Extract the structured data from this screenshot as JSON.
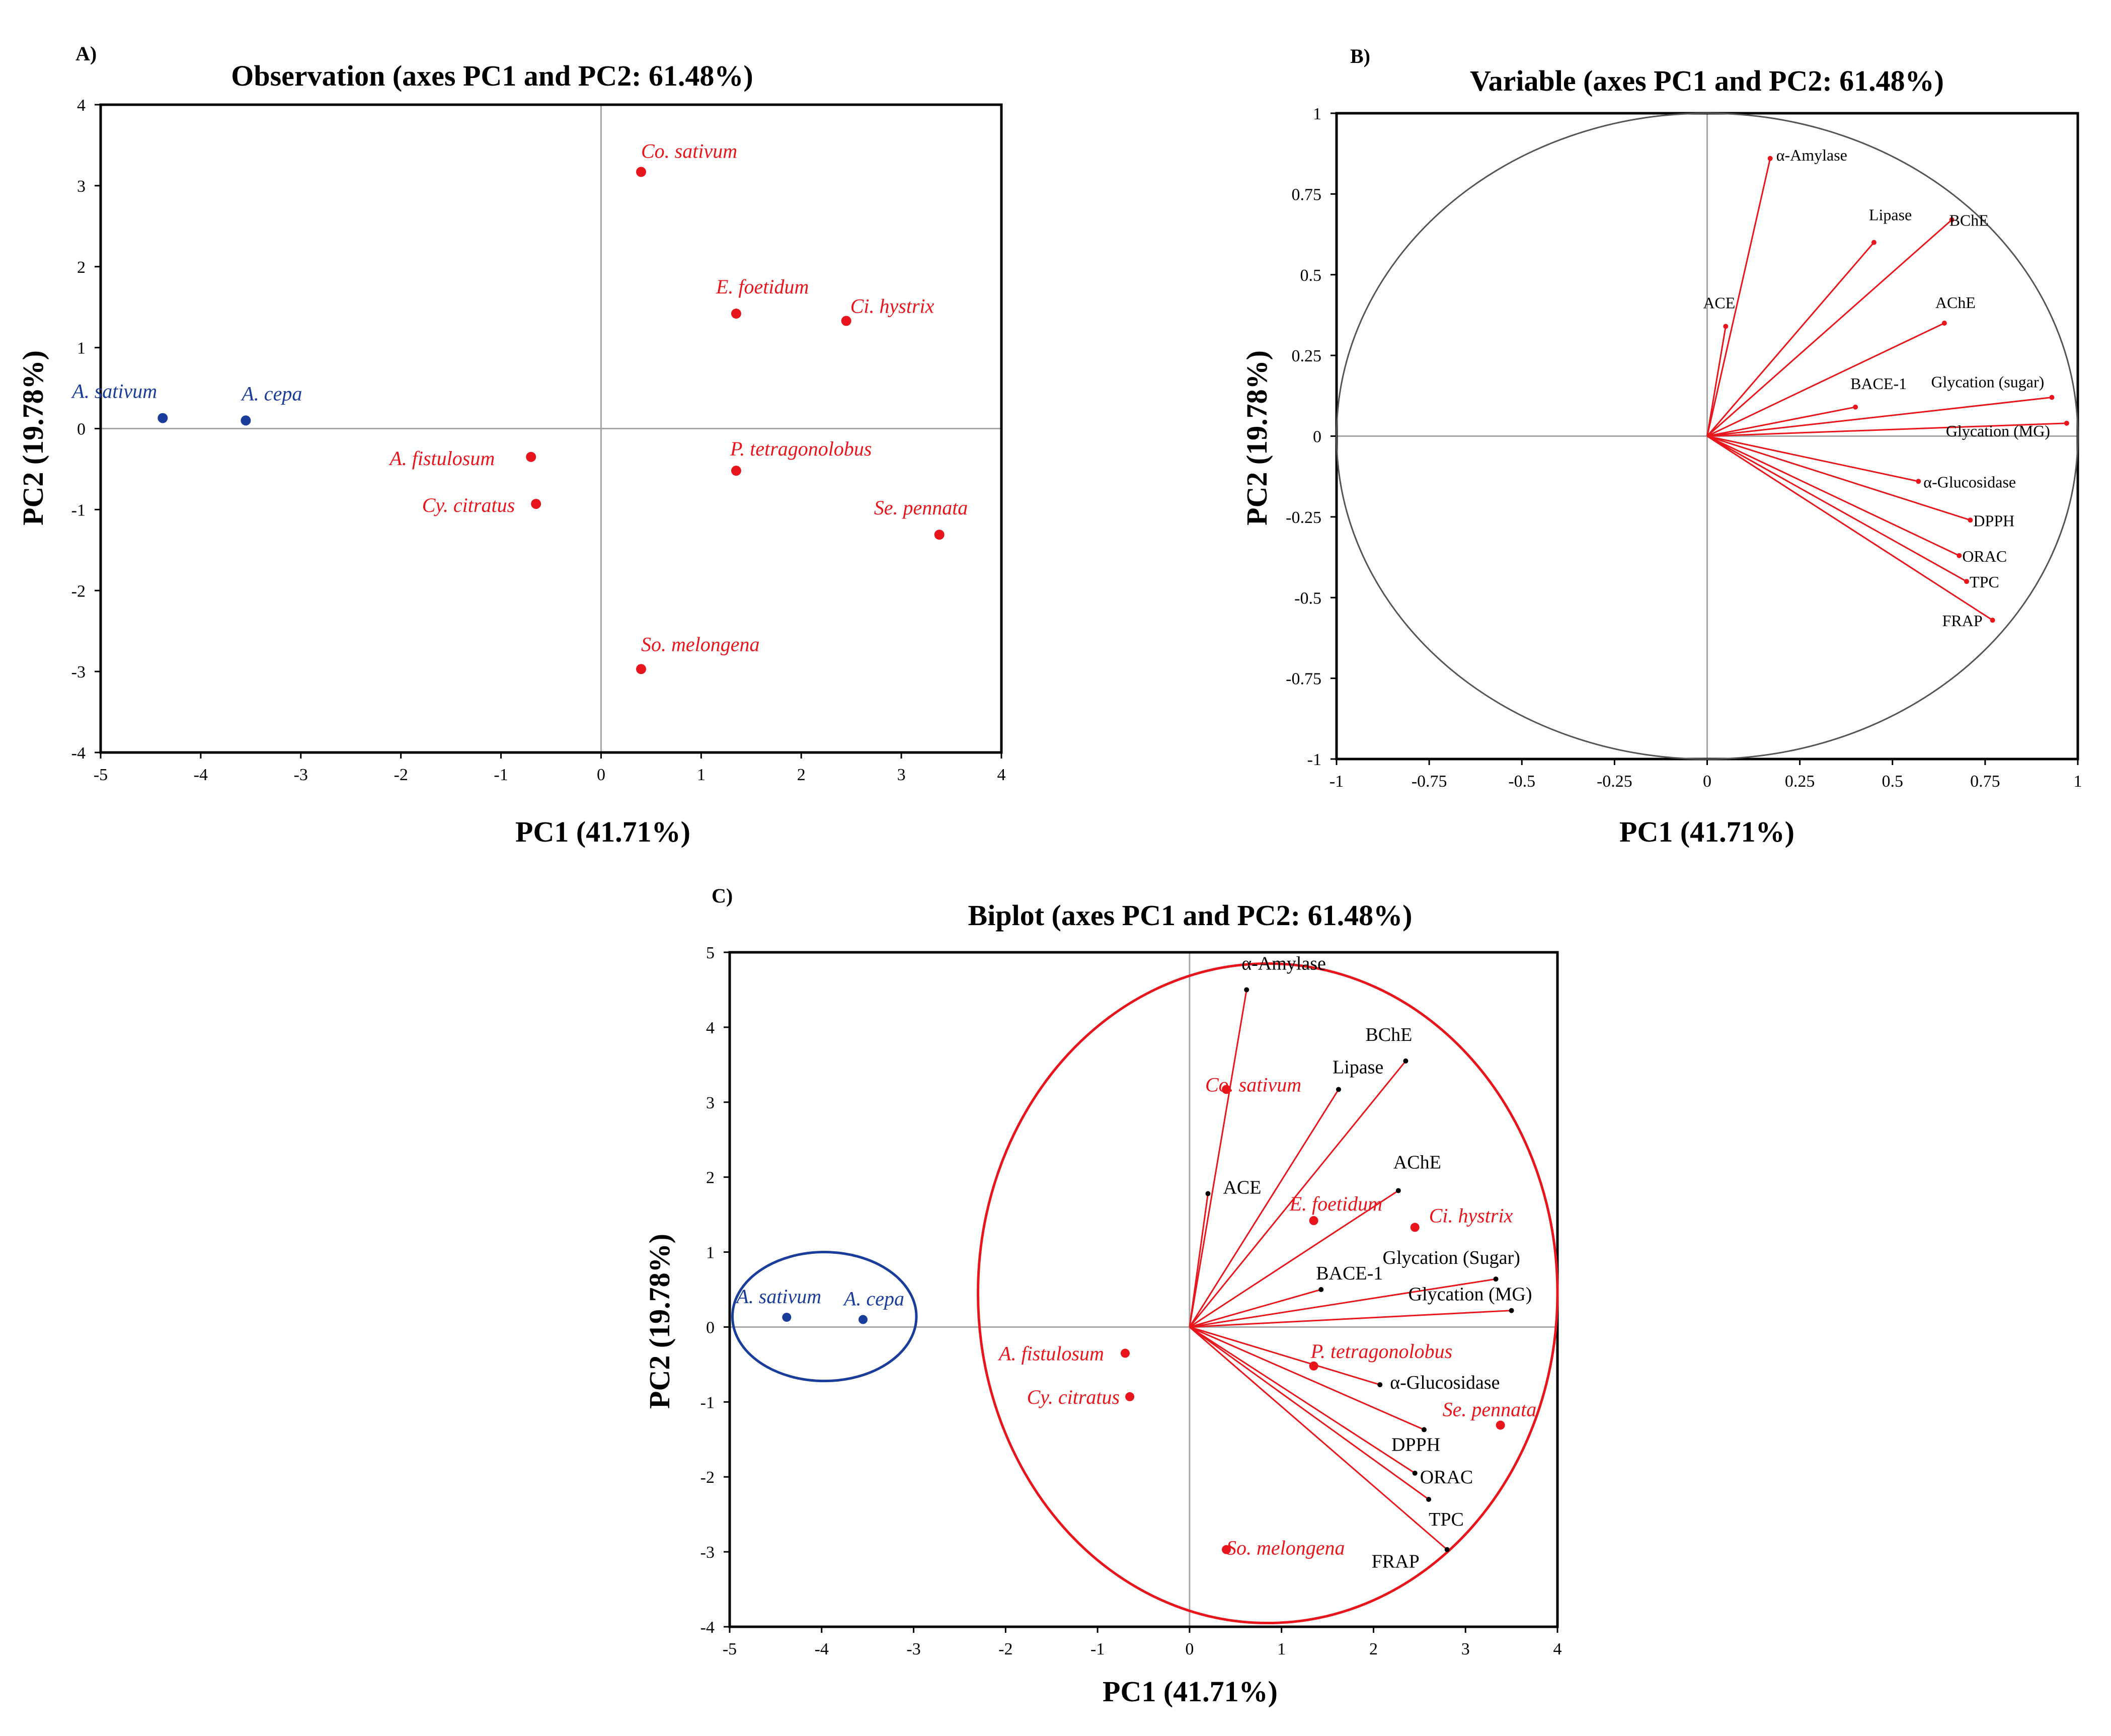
{
  "panel_tags": [
    "A)",
    "B)",
    "C)"
  ],
  "colors": {
    "red": "#e8161c",
    "blue": "#1a3d9c",
    "axis": "#000000",
    "zero": "#a6a6a6",
    "circle": "#555555"
  },
  "chart_data": [
    {
      "type": "scatter",
      "panel": "A)",
      "title": "Observation (axes PC1 and PC2: 61.48%)",
      "xlabel": "PC1 (41.71%)",
      "ylabel": "PC2 (19.78%)",
      "xlim": [
        -5,
        4
      ],
      "ylim": [
        -4,
        4
      ],
      "xticks": [
        -5,
        -4,
        -3,
        -2,
        -1,
        0,
        1,
        2,
        3,
        4
      ],
      "yticks": [
        -4,
        -3,
        -2,
        -1,
        0,
        1,
        2,
        3,
        4
      ],
      "points": [
        {
          "label": "A. sativum",
          "x": -4.38,
          "y": 0.13,
          "group": "blue"
        },
        {
          "label": "A. cepa",
          "x": -3.55,
          "y": 0.1,
          "group": "blue"
        },
        {
          "label": "A. fistulosum",
          "x": -0.7,
          "y": -0.35,
          "group": "red"
        },
        {
          "label": "Cy. citratus",
          "x": -0.65,
          "y": -0.93,
          "group": "red"
        },
        {
          "label": "Co. sativum",
          "x": 0.4,
          "y": 3.17,
          "group": "red"
        },
        {
          "label": "E. foetidum",
          "x": 1.35,
          "y": 1.42,
          "group": "red"
        },
        {
          "label": "Ci. hystrix",
          "x": 2.45,
          "y": 1.33,
          "group": "red"
        },
        {
          "label": "P. tetragonolobus",
          "x": 1.35,
          "y": -0.52,
          "group": "red"
        },
        {
          "label": "Se. pennata",
          "x": 3.38,
          "y": -1.31,
          "group": "red"
        },
        {
          "label": "So. melongena",
          "x": 0.4,
          "y": -2.97,
          "group": "red"
        }
      ]
    },
    {
      "type": "scatter",
      "panel": "B)",
      "title": "Variable (axes PC1 and PC2: 61.48%)",
      "xlabel": "PC1 (41.71%)",
      "ylabel": "PC2 (19.78%)",
      "xlim": [
        -1,
        1
      ],
      "ylim": [
        -1,
        1
      ],
      "xticks": [
        "-1",
        "-0.75",
        "-0.5",
        "-0.25",
        "0",
        "0.25",
        "0.5",
        "0.75",
        "1"
      ],
      "yticks": [
        "-1",
        "-0.75",
        "-0.5",
        "-0.25",
        "0",
        "0.25",
        "0.5",
        "0.75",
        "1"
      ],
      "correlation_circle": true,
      "vectors": [
        {
          "label": "α-Amylase",
          "x": 0.17,
          "y": 0.86
        },
        {
          "label": "Lipase",
          "x": 0.45,
          "y": 0.6
        },
        {
          "label": "BChE",
          "x": 0.66,
          "y": 0.67
        },
        {
          "label": "ACE",
          "x": 0.05,
          "y": 0.34
        },
        {
          "label": "AChE",
          "x": 0.64,
          "y": 0.35
        },
        {
          "label": "BACE-1",
          "x": 0.4,
          "y": 0.09
        },
        {
          "label": "Glycation (sugar)",
          "x": 0.93,
          "y": 0.12
        },
        {
          "label": "Glycation (MG)",
          "x": 0.97,
          "y": 0.04
        },
        {
          "label": "α-Glucosidase",
          "x": 0.57,
          "y": -0.14
        },
        {
          "label": "DPPH",
          "x": 0.71,
          "y": -0.26
        },
        {
          "label": "ORAC",
          "x": 0.68,
          "y": -0.37
        },
        {
          "label": "TPC",
          "x": 0.7,
          "y": -0.45
        },
        {
          "label": "FRAP",
          "x": 0.77,
          "y": -0.57
        }
      ]
    },
    {
      "type": "scatter",
      "panel": "C)",
      "title": "Biplot (axes PC1 and PC2: 61.48%)",
      "xlabel": "PC1 (41.71%)",
      "ylabel": "PC2 (19.78%)",
      "xlim": [
        -5,
        4
      ],
      "ylim": [
        -4,
        5
      ],
      "xticks": [
        -5,
        -4,
        -3,
        -2,
        -1,
        0,
        1,
        2,
        3,
        4
      ],
      "yticks": [
        -4,
        -3,
        -2,
        -1,
        0,
        1,
        2,
        3,
        4,
        5
      ],
      "points": [
        {
          "label": "A. sativum",
          "x": -4.38,
          "y": 0.13,
          "group": "blue"
        },
        {
          "label": "A. cepa",
          "x": -3.55,
          "y": 0.1,
          "group": "blue"
        },
        {
          "label": "A. fistulosum",
          "x": -0.7,
          "y": -0.35,
          "group": "red"
        },
        {
          "label": "Cy. citratus",
          "x": -0.65,
          "y": -0.93,
          "group": "red"
        },
        {
          "label": "Co. sativum",
          "x": 0.4,
          "y": 3.17,
          "group": "red"
        },
        {
          "label": "E. foetidum",
          "x": 1.35,
          "y": 1.42,
          "group": "red"
        },
        {
          "label": "Ci. hystrix",
          "x": 2.45,
          "y": 1.33,
          "group": "red"
        },
        {
          "label": "P. tetragonolobus",
          "x": 1.35,
          "y": -0.52,
          "group": "red"
        },
        {
          "label": "Se. pennata",
          "x": 3.38,
          "y": -1.31,
          "group": "red"
        },
        {
          "label": "So. melongena",
          "x": 0.4,
          "y": -2.97,
          "group": "red"
        }
      ],
      "vectors": [
        {
          "label": "α-Amylase",
          "x": 0.62,
          "y": 4.5
        },
        {
          "label": "Lipase",
          "x": 1.62,
          "y": 3.17
        },
        {
          "label": "BChE",
          "x": 2.35,
          "y": 3.55
        },
        {
          "label": "ACE",
          "x": 0.2,
          "y": 1.78
        },
        {
          "label": "AChE",
          "x": 2.27,
          "y": 1.82
        },
        {
          "label": "BACE-1",
          "x": 1.43,
          "y": 0.5
        },
        {
          "label": "Glycation (Sugar)",
          "x": 3.33,
          "y": 0.64
        },
        {
          "label": "Glycation (MG)",
          "x": 3.5,
          "y": 0.22
        },
        {
          "label": "α-Glucosidase",
          "x": 2.07,
          "y": -0.77
        },
        {
          "label": "DPPH",
          "x": 2.55,
          "y": -1.37
        },
        {
          "label": "ORAC",
          "x": 2.45,
          "y": -1.95
        },
        {
          "label": "TPC",
          "x": 2.6,
          "y": -2.3
        },
        {
          "label": "FRAP",
          "x": 2.8,
          "y": -2.97
        }
      ]
    }
  ]
}
